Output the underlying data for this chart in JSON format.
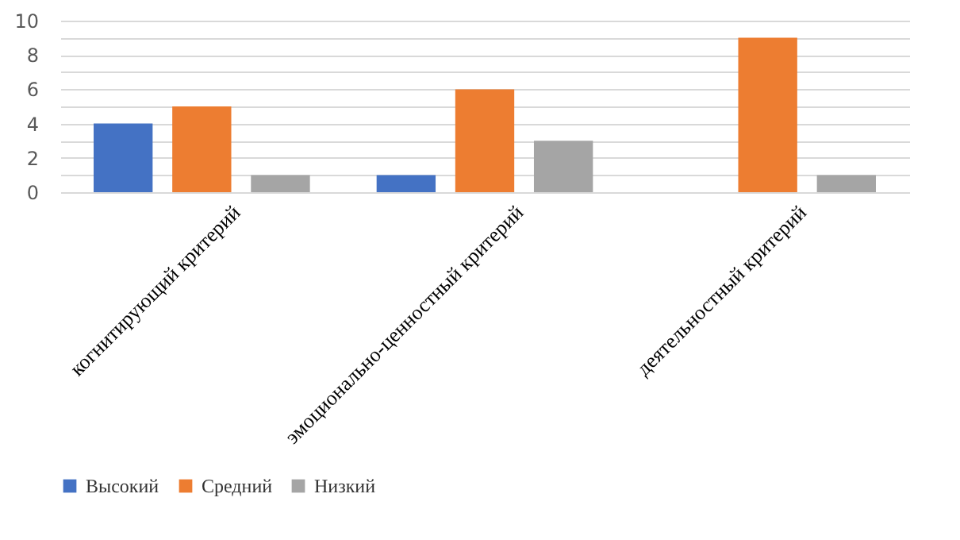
{
  "chart_data": {
    "type": "bar",
    "categories": [
      "когнитирующий критерий",
      "эмоционально-ценностный критерий",
      "деятельностный критерий"
    ],
    "series": [
      {
        "name": "Высокий",
        "color": "#4472c4",
        "values": [
          4,
          1,
          0
        ]
      },
      {
        "name": "Средний",
        "color": "#ed7d31",
        "values": [
          5,
          6,
          9
        ]
      },
      {
        "name": "Низкий",
        "color": "#a5a5a5",
        "values": [
          1,
          3,
          1
        ]
      }
    ],
    "ylim": [
      0,
      10
    ],
    "yticks": [
      0,
      {
        "value": 1,
        "label": null
      },
      2,
      {
        "value": 3,
        "label": null
      },
      4,
      {
        "value": 5,
        "label": null
      },
      6,
      {
        "value": 7,
        "label": null
      },
      8,
      {
        "value": 9,
        "label": null
      },
      10
    ],
    "grid": "y",
    "legend": "bottom"
  }
}
